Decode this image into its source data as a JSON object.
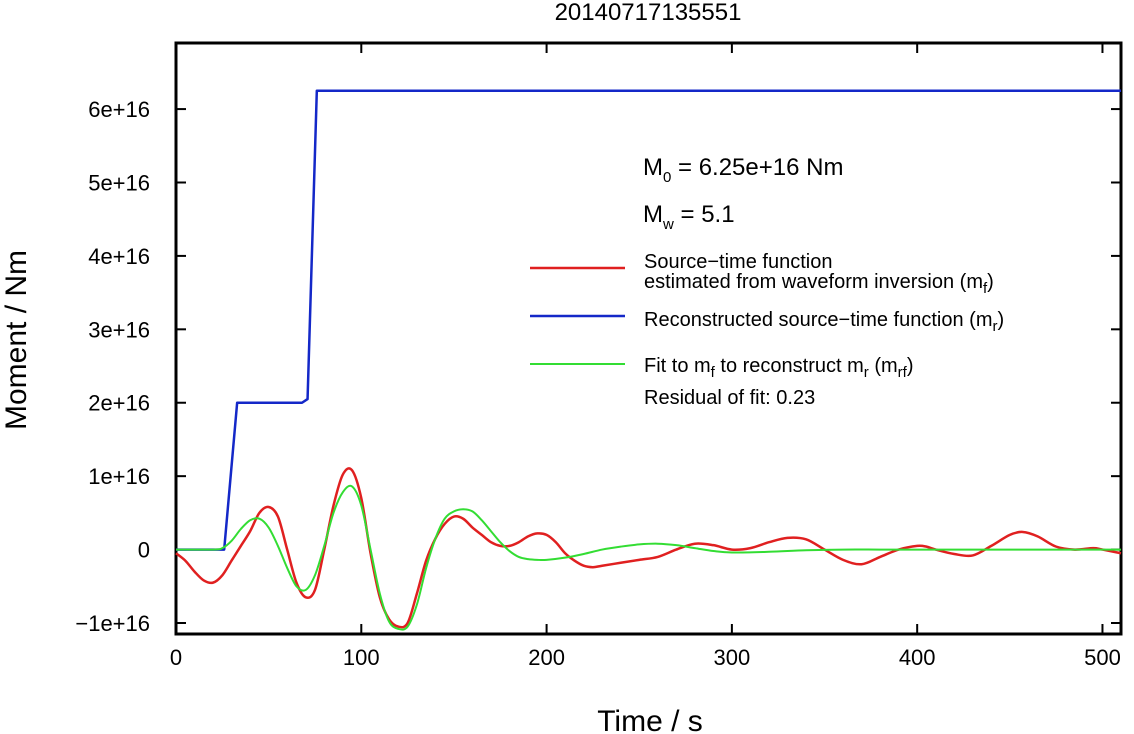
{
  "chart_data": {
    "type": "line",
    "title": "20140717135551",
    "xlabel": "Time / s",
    "ylabel": "Moment / Nm",
    "xlim": [
      0,
      510
    ],
    "ylim": [
      -1.15e+16,
      6.9e+16
    ],
    "x_ticks": [
      0,
      100,
      200,
      300,
      400,
      500
    ],
    "x_tick_labels": [
      "0",
      "100",
      "200",
      "300",
      "400",
      "500"
    ],
    "y_ticks": [
      -1e+16,
      0,
      1e+16,
      2e+16,
      3e+16,
      4e+16,
      5e+16,
      6e+16
    ],
    "y_tick_labels": [
      "−1e+16",
      "0",
      "1e+16",
      "2e+16",
      "3e+16",
      "4e+16",
      "5e+16",
      "6e+16"
    ],
    "grid": false,
    "legend_position": "right",
    "annotations": {
      "m0_text": "M",
      "m0_sub": "0",
      "m0_value": " = 6.25e+16 Nm",
      "mw_text": "M",
      "mw_sub": "w",
      "mw_value": " = 5.1",
      "residual": "Residual of fit: 0.23"
    },
    "legend": [
      {
        "color": "#e02020",
        "line1": "Source−time function",
        "line2a": "estimated from waveform inversion (m",
        "line2sub": "f",
        "line2b": ")"
      },
      {
        "color": "#1428c8",
        "line1a": "Reconstructed source−time function (m",
        "line1sub": "r",
        "line1b": ")"
      },
      {
        "color": "#33dd33",
        "line1a": "Fit to m",
        "line1sub1": "f",
        "line1c": " to reconstruct m",
        "line1sub2": "r",
        "line1d": " (m",
        "line1sub3": "rf",
        "line1b": ")"
      }
    ],
    "series": [
      {
        "color": "#e02020",
        "x": [
          0,
          5,
          10,
          15,
          20,
          25,
          30,
          35,
          40,
          45,
          50,
          55,
          60,
          65,
          70,
          75,
          80,
          85,
          90,
          95,
          100,
          105,
          110,
          115,
          120,
          125,
          130,
          135,
          140,
          145,
          150,
          155,
          160,
          165,
          170,
          175,
          180,
          185,
          190,
          195,
          200,
          205,
          210,
          215,
          220,
          225,
          230,
          240,
          250,
          260,
          270,
          280,
          290,
          300,
          310,
          320,
          330,
          340,
          350,
          360,
          370,
          380,
          390,
          400,
          405,
          410,
          420,
          430,
          440,
          450,
          457,
          465,
          475,
          485,
          495,
          500,
          510
        ],
        "y": [
          -500000000000000.0,
          -1500000000000000.0,
          -3000000000000000.0,
          -4200000000000000.0,
          -4500000000000000.0,
          -3500000000000000.0,
          -1500000000000000.0,
          500000000000000.0,
          2500000000000000.0,
          5000000000000000.0,
          5800000000000000.0,
          4500000000000000.0,
          0.0,
          -4500000000000000.0,
          -6500000000000000.0,
          -5500000000000000.0,
          0.0,
          6000000000000000.0,
          1.02e+16,
          1.08e+16,
          7000000000000000.0,
          -500000000000000.0,
          -6500000000000000.0,
          -9500000000000000.0,
          -1.05e+16,
          -1e+16,
          -6000000000000000.0,
          -1500000000000000.0,
          1500000000000000.0,
          3500000000000000.0,
          4500000000000000.0,
          4200000000000000.0,
          3000000000000000.0,
          2000000000000000.0,
          1000000000000000.0,
          500000000000000.0,
          500000000000000.0,
          1000000000000000.0,
          1800000000000000.0,
          2200000000000000.0,
          2000000000000000.0,
          1000000000000000.0,
          -500000000000000.0,
          -1500000000000000.0,
          -2200000000000000.0,
          -2400000000000000.0,
          -2200000000000000.0,
          -1800000000000000.0,
          -1400000000000000.0,
          -1000000000000000.0,
          0.0,
          800000000000000.0,
          600000000000000.0,
          0.0,
          200000000000000.0,
          1000000000000000.0,
          1600000000000000.0,
          1400000000000000.0,
          0.0,
          -1400000000000000.0,
          -2000000000000000.0,
          -1000000000000000.0,
          0.0,
          500000000000000.0,
          400000000000000.0,
          0.0,
          -600000000000000.0,
          -800000000000000.0,
          500000000000000.0,
          2000000000000000.0,
          2400000000000000.0,
          1800000000000000.0,
          400000000000000.0,
          0.0,
          200000000000000.0,
          0.0,
          -500000000000000.0
        ]
      },
      {
        "color": "#1428c8",
        "x": [
          0,
          26,
          33,
          68,
          71,
          76,
          510
        ],
        "y": [
          0,
          0,
          2e+16,
          2e+16,
          2.05e+16,
          6.25e+16,
          6.25e+16
        ]
      },
      {
        "color": "#33dd33",
        "x": [
          0,
          20,
          25,
          30,
          35,
          40,
          45,
          50,
          55,
          60,
          65,
          70,
          75,
          80,
          85,
          90,
          95,
          100,
          105,
          110,
          115,
          120,
          125,
          130,
          135,
          140,
          145,
          150,
          155,
          160,
          165,
          170,
          175,
          180,
          185,
          190,
          195,
          200,
          210,
          220,
          230,
          240,
          250,
          260,
          270,
          280,
          290,
          300,
          320,
          340,
          360,
          380,
          400,
          450,
          510
        ],
        "y": [
          0,
          0,
          200000000000000.0,
          1200000000000000.0,
          2800000000000000.0,
          4000000000000000.0,
          4200000000000000.0,
          3000000000000000.0,
          500000000000000.0,
          -2500000000000000.0,
          -5000000000000000.0,
          -5500000000000000.0,
          -3500000000000000.0,
          500000000000000.0,
          5000000000000000.0,
          7800000000000000.0,
          8600000000000000.0,
          6000000000000000.0,
          0.0,
          -6000000000000000.0,
          -9800000000000000.0,
          -1.08e+16,
          -1.05e+16,
          -7500000000000000.0,
          -2500000000000000.0,
          1500000000000000.0,
          4200000000000000.0,
          5200000000000000.0,
          5500000000000000.0,
          5200000000000000.0,
          4000000000000000.0,
          2500000000000000.0,
          1000000000000000.0,
          -200000000000000.0,
          -1000000000000000.0,
          -1300000000000000.0,
          -1400000000000000.0,
          -1400000000000000.0,
          -1100000000000000.0,
          -600000000000000.0,
          0.0,
          400000000000000.0,
          700000000000000.0,
          800000000000000.0,
          600000000000000.0,
          200000000000000.0,
          -200000000000000.0,
          -400000000000000.0,
          -300000000000000.0,
          -100000000000000.0,
          0.0,
          0.0,
          0.0,
          0.0,
          0.0
        ]
      }
    ]
  }
}
